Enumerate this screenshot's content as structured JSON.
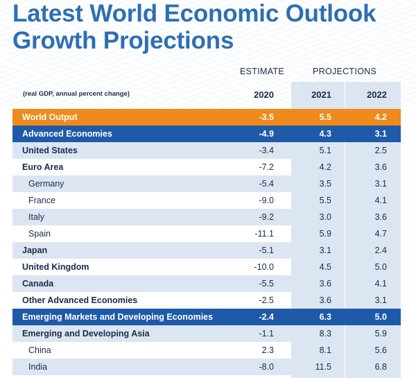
{
  "title": {
    "line1": "Latest World Economic Outlook",
    "line2": "Growth Projections"
  },
  "header": {
    "estimate_label": "ESTIMATE",
    "projections_label": "PROJECTIONS",
    "units_note": "(real GDP, annual percent change)",
    "years": [
      "2020",
      "2021",
      "2022"
    ]
  },
  "rows": [
    {
      "label": "World Output",
      "values": [
        "-3.5",
        "5.5",
        "4.2"
      ],
      "style": "orange"
    },
    {
      "label": "Advanced Economies",
      "values": [
        "-4.9",
        "4.3",
        "3.1"
      ],
      "style": "blue"
    },
    {
      "label": "United States",
      "values": [
        "-3.4",
        "5.1",
        "2.5"
      ],
      "style": "shade"
    },
    {
      "label": "Euro Area",
      "values": [
        "-7.2",
        "4.2",
        "3.6"
      ],
      "style": "plain"
    },
    {
      "label": "Germany",
      "values": [
        "-5.4",
        "3.5",
        "3.1"
      ],
      "style": "shade-indent"
    },
    {
      "label": "France",
      "values": [
        "-9.0",
        "5.5",
        "4.1"
      ],
      "style": "plain-indent"
    },
    {
      "label": "Italy",
      "values": [
        "-9.2",
        "3.0",
        "3.6"
      ],
      "style": "shade-indent"
    },
    {
      "label": "Spain",
      "values": [
        "-11.1",
        "5.9",
        "4.7"
      ],
      "style": "plain-indent"
    },
    {
      "label": "Japan",
      "values": [
        "-5.1",
        "3.1",
        "2.4"
      ],
      "style": "shade"
    },
    {
      "label": "United Kingdom",
      "values": [
        "-10.0",
        "4.5",
        "5.0"
      ],
      "style": "plain"
    },
    {
      "label": "Canada",
      "values": [
        "-5.5",
        "3.6",
        "4.1"
      ],
      "style": "shade"
    },
    {
      "label": "Other Advanced Economies",
      "values": [
        "-2.5",
        "3.6",
        "3.1"
      ],
      "style": "plain"
    },
    {
      "label": "Emerging Markets and Developing Economies",
      "values": [
        "-2.4",
        "6.3",
        "5.0"
      ],
      "style": "blue"
    },
    {
      "label": "Emerging and Developing Asia",
      "values": [
        "-1.1",
        "8.3",
        "5.9"
      ],
      "style": "shade"
    },
    {
      "label": "China",
      "values": [
        "2.3",
        "8.1",
        "5.6"
      ],
      "style": "plain-indent"
    },
    {
      "label": "India",
      "values": [
        "-8.0",
        "11.5",
        "6.8"
      ],
      "style": "shade-indent"
    }
  ],
  "colors": {
    "title": "#2e6fb3",
    "world_output_band": "#ef8a1d",
    "group_band": "#1f5aa8",
    "shade": "#dce6f2",
    "text": "#1b2a49"
  }
}
